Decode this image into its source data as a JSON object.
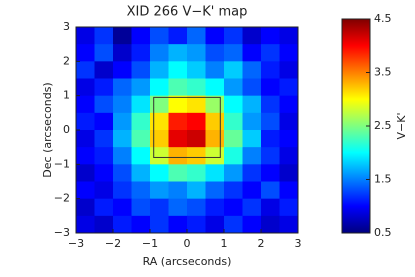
{
  "chart_data": {
    "type": "heatmap",
    "title": "XID 266 V−K' map",
    "x_label": "RA (arcseconds)",
    "y_label": "Dec (arcseconds)",
    "colorbar_label": "V−K'",
    "colormap": "jet",
    "xlim": [
      -3,
      3
    ],
    "ylim": [
      -3,
      3
    ],
    "xticks": [
      {
        "value": -3,
        "label": "−3"
      },
      {
        "value": -2,
        "label": "−2"
      },
      {
        "value": -1,
        "label": "−1"
      },
      0,
      1,
      2,
      3
    ],
    "yticks": [
      {
        "value": -3,
        "label": "−3"
      },
      {
        "value": -2,
        "label": "−2"
      },
      {
        "value": -1,
        "label": "−1"
      },
      0,
      1,
      2,
      3
    ],
    "xbins": [
      -3,
      -2.5,
      -2,
      -1.5,
      -1,
      -0.5,
      0,
      0.5,
      1,
      1.5,
      2,
      2.5,
      3
    ],
    "ybins": [
      3,
      2.5,
      2,
      1.5,
      1,
      0.5,
      0,
      -0.5,
      -1,
      -1.5,
      -2,
      -2.5,
      -3
    ],
    "z": [
      [
        0.9,
        1.2,
        0.6,
        1.0,
        1.3,
        1.1,
        1.4,
        1.0,
        1.2,
        0.8,
        1.0,
        0.9
      ],
      [
        1.0,
        1.3,
        0.8,
        1.1,
        1.5,
        1.7,
        1.6,
        1.3,
        1.4,
        1.0,
        1.2,
        1.0
      ],
      [
        1.2,
        0.8,
        1.0,
        1.3,
        1.7,
        2.0,
        1.8,
        1.5,
        1.8,
        1.4,
        1.1,
        0.9
      ],
      [
        0.9,
        1.1,
        1.4,
        1.6,
        2.0,
        2.3,
        2.2,
        2.0,
        1.6,
        1.3,
        1.0,
        1.1
      ],
      [
        1.0,
        1.3,
        1.5,
        1.9,
        2.5,
        3.0,
        3.1,
        2.6,
        2.0,
        1.7,
        1.2,
        1.0
      ],
      [
        1.1,
        1.0,
        1.6,
        2.2,
        3.1,
        3.9,
        4.0,
        3.2,
        2.2,
        1.6,
        1.3,
        0.9
      ],
      [
        0.9,
        1.2,
        1.7,
        2.3,
        3.2,
        4.1,
        4.2,
        3.3,
        2.4,
        1.8,
        1.1,
        1.0
      ],
      [
        1.0,
        1.1,
        1.5,
        2.0,
        2.8,
        3.3,
        3.2,
        2.8,
        2.1,
        1.5,
        1.2,
        0.9
      ],
      [
        0.8,
        1.0,
        1.3,
        1.7,
        2.0,
        2.3,
        2.2,
        1.9,
        1.6,
        1.2,
        1.0,
        0.8
      ],
      [
        1.0,
        0.9,
        1.2,
        1.4,
        1.6,
        1.5,
        1.7,
        1.4,
        1.2,
        1.0,
        1.3,
        1.0
      ],
      [
        0.8,
        1.1,
        1.0,
        1.3,
        1.2,
        1.4,
        1.3,
        1.1,
        1.0,
        1.2,
        0.9,
        1.1
      ],
      [
        0.9,
        0.8,
        1.1,
        1.0,
        1.2,
        1.0,
        1.1,
        0.9,
        1.2,
        1.0,
        0.8,
        0.9
      ]
    ],
    "clim": [
      0.5,
      4.5
    ],
    "cticks": [
      0.5,
      1.5,
      2.5,
      3.5,
      4.5
    ],
    "region": {
      "x": [
        -0.9,
        0.9
      ],
      "y": [
        -0.8,
        0.95
      ],
      "color": "#333333"
    }
  }
}
